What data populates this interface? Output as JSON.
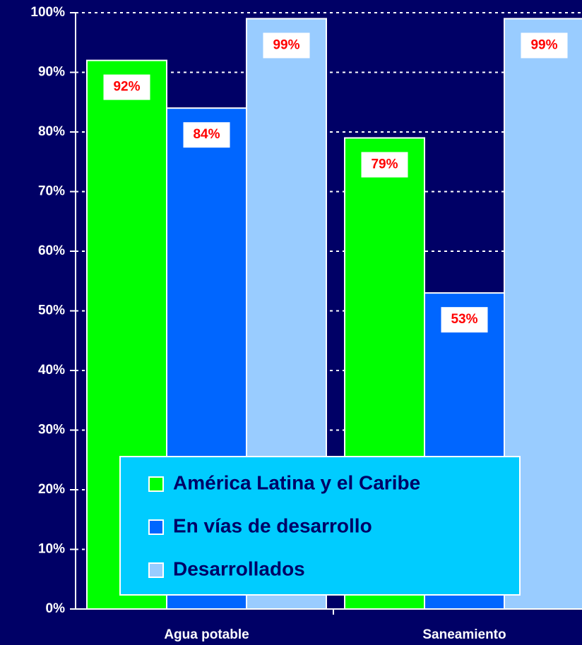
{
  "chart_data": {
    "type": "bar",
    "categories": [
      "Agua potable",
      "Saneamiento"
    ],
    "series": [
      {
        "name": "América Latina y el Caribe",
        "color": "#00ff00",
        "values": [
          92,
          79
        ],
        "value_labels": [
          "92%",
          "79%"
        ]
      },
      {
        "name": "En vías de desarrollo",
        "color": "#0066ff",
        "values": [
          84,
          53
        ],
        "value_labels": [
          "84%",
          "53%"
        ]
      },
      {
        "name": "Desarrollados",
        "color": "#99ccff",
        "values": [
          99,
          99
        ],
        "value_labels": [
          "99%",
          "99%"
        ]
      }
    ],
    "ylim": [
      0,
      100
    ],
    "yticks": [
      {
        "value": 0,
        "label": "0%"
      },
      {
        "value": 10,
        "label": "10%"
      },
      {
        "value": 20,
        "label": "20%"
      },
      {
        "value": 30,
        "label": "30%"
      },
      {
        "value": 40,
        "label": "40%"
      },
      {
        "value": 50,
        "label": "50%"
      },
      {
        "value": 60,
        "label": "60%"
      },
      {
        "value": 70,
        "label": "70%"
      },
      {
        "value": 80,
        "label": "80%"
      },
      {
        "value": 90,
        "label": "90%"
      },
      {
        "value": 100,
        "label": "100%"
      }
    ],
    "grid": true
  }
}
